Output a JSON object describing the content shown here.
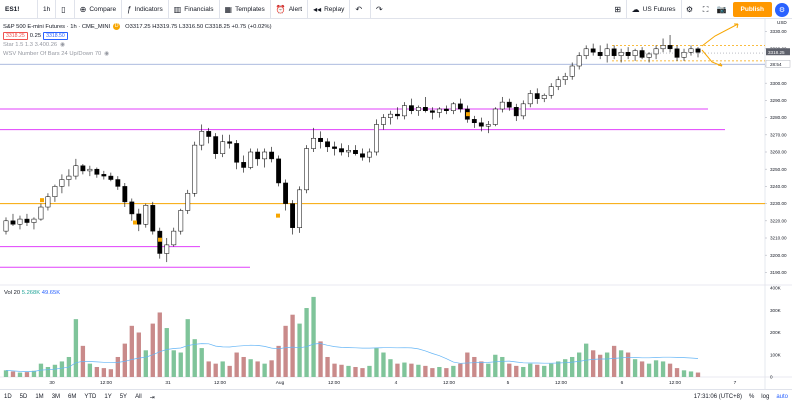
{
  "toolbar": {
    "symbol": "ES1!",
    "interval": "1h",
    "compare": "Compare",
    "indicators": "Indicators",
    "financials": "Financials",
    "templates": "Templates",
    "alert": "Alert",
    "replay": "Replay",
    "watchlist": "US Futures",
    "publish": "Publish"
  },
  "legend": {
    "title": "S&P 500 E-mini Futures · 1h · CME_MINI",
    "ohlc": "O3317.25 H3319.75 L3316.50 C3318.25 +0.75 (+0.02%)",
    "bid": "3318.25",
    "spread": "0.25",
    "ask": "3318.50",
    "study1": "Star 1.5 1.3 3.400.26",
    "study2": "WSV Number Of Bars 24 Up/Down 70"
  },
  "volume": {
    "label": "Vol 20",
    "value": "5.268K",
    "ma": "49.65K"
  },
  "price_axis": {
    "currency": "USD",
    "ticks": [
      "3330.00",
      "3320.00",
      "3310.00",
      "3300.00",
      "3290.00",
      "3280.00",
      "3270.00",
      "3260.00",
      "3250.00",
      "3240.00",
      "3230.00",
      "3220.00",
      "3210.00",
      "3200.00",
      "3190.00"
    ],
    "last_price": "3318.25",
    "countdown": "28:54"
  },
  "volume_axis": {
    "ticks": [
      "400K",
      "300K",
      "200K",
      "100K",
      "0"
    ]
  },
  "time_axis": {
    "labels": [
      "30",
      "12:00",
      "31",
      "12:00",
      "Aug",
      "12:00",
      "4",
      "12:00",
      "5",
      "12:00",
      "6",
      "12:00",
      "7"
    ]
  },
  "bottombar": {
    "ranges": [
      "1D",
      "5D",
      "1M",
      "3M",
      "6M",
      "YTD",
      "1Y",
      "5Y",
      "All"
    ],
    "clock": "17:31:06 (UTC+8)",
    "pct": "%",
    "log": "log",
    "auto": "auto"
  },
  "colors": {
    "up": "#000000",
    "down": "#000000",
    "vol_up": "#7fc49a",
    "vol_down": "#c98a8a",
    "accent": "#ff9800",
    "magenta": "#e040fb",
    "blue_line": "#2962ff"
  },
  "chart_data": {
    "type": "candlestick",
    "y_range": [
      3185,
      3335
    ],
    "vol_range": [
      0,
      400000
    ],
    "candles": [
      [
        3214,
        3222,
        3212,
        3220
      ],
      [
        3220,
        3224,
        3217,
        3218
      ],
      [
        3218,
        3223,
        3215,
        3221
      ],
      [
        3221,
        3224,
        3217,
        3219
      ],
      [
        3219,
        3222,
        3215,
        3221
      ],
      [
        3221,
        3230,
        3220,
        3228
      ],
      [
        3228,
        3236,
        3226,
        3234
      ],
      [
        3234,
        3241,
        3231,
        3240
      ],
      [
        3240,
        3247,
        3236,
        3244
      ],
      [
        3244,
        3250,
        3240,
        3246
      ],
      [
        3246,
        3256,
        3244,
        3252
      ],
      [
        3252,
        3253,
        3247,
        3249
      ],
      [
        3249,
        3252,
        3246,
        3250
      ],
      [
        3250,
        3251,
        3245,
        3247
      ],
      [
        3247,
        3249,
        3244,
        3246
      ],
      [
        3246,
        3248,
        3243,
        3244
      ],
      [
        3244,
        3246,
        3238,
        3240
      ],
      [
        3240,
        3242,
        3228,
        3231
      ],
      [
        3231,
        3233,
        3220,
        3224
      ],
      [
        3224,
        3227,
        3214,
        3218
      ],
      [
        3218,
        3230,
        3216,
        3229
      ],
      [
        3229,
        3231,
        3212,
        3214
      ],
      [
        3214,
        3216,
        3198,
        3201
      ],
      [
        3201,
        3210,
        3196,
        3206
      ],
      [
        3206,
        3216,
        3205,
        3214
      ],
      [
        3214,
        3227,
        3212,
        3226
      ],
      [
        3226,
        3238,
        3224,
        3236
      ],
      [
        3236,
        3266,
        3234,
        3264
      ],
      [
        3264,
        3276,
        3261,
        3272
      ],
      [
        3272,
        3274,
        3265,
        3269
      ],
      [
        3269,
        3271,
        3256,
        3259
      ],
      [
        3259,
        3270,
        3257,
        3266
      ],
      [
        3266,
        3270,
        3262,
        3265
      ],
      [
        3265,
        3267,
        3250,
        3254
      ],
      [
        3254,
        3258,
        3248,
        3251
      ],
      [
        3251,
        3262,
        3250,
        3260
      ],
      [
        3260,
        3262,
        3252,
        3256
      ],
      [
        3256,
        3262,
        3251,
        3260
      ],
      [
        3260,
        3263,
        3254,
        3256
      ],
      [
        3256,
        3258,
        3240,
        3242
      ],
      [
        3242,
        3244,
        3226,
        3230
      ],
      [
        3230,
        3232,
        3212,
        3216
      ],
      [
        3216,
        3240,
        3213,
        3238
      ],
      [
        3238,
        3264,
        3236,
        3262
      ],
      [
        3262,
        3274,
        3260,
        3268
      ],
      [
        3268,
        3272,
        3262,
        3266
      ],
      [
        3266,
        3268,
        3260,
        3263
      ],
      [
        3263,
        3266,
        3258,
        3262
      ],
      [
        3262,
        3265,
        3258,
        3260
      ],
      [
        3260,
        3264,
        3257,
        3261
      ],
      [
        3261,
        3264,
        3258,
        3259
      ],
      [
        3259,
        3262,
        3255,
        3257
      ],
      [
        3257,
        3262,
        3254,
        3260
      ],
      [
        3260,
        3279,
        3258,
        3276
      ],
      [
        3276,
        3282,
        3273,
        3280
      ],
      [
        3280,
        3284,
        3276,
        3282
      ],
      [
        3282,
        3286,
        3279,
        3281
      ],
      [
        3281,
        3289,
        3279,
        3287
      ],
      [
        3287,
        3291,
        3282,
        3284
      ],
      [
        3284,
        3287,
        3281,
        3286
      ],
      [
        3286,
        3292,
        3283,
        3284
      ],
      [
        3284,
        3286,
        3279,
        3283
      ],
      [
        3283,
        3286,
        3280,
        3285
      ],
      [
        3285,
        3287,
        3282,
        3284
      ],
      [
        3284,
        3289,
        3282,
        3288
      ],
      [
        3288,
        3291,
        3283,
        3285
      ],
      [
        3285,
        3287,
        3277,
        3279
      ],
      [
        3279,
        3281,
        3274,
        3277
      ],
      [
        3277,
        3280,
        3272,
        3275
      ],
      [
        3275,
        3278,
        3271,
        3276
      ],
      [
        3276,
        3286,
        3275,
        3285
      ],
      [
        3285,
        3292,
        3283,
        3289
      ],
      [
        3289,
        3291,
        3284,
        3286
      ],
      [
        3286,
        3288,
        3278,
        3281
      ],
      [
        3281,
        3290,
        3279,
        3288
      ],
      [
        3288,
        3296,
        3286,
        3294
      ],
      [
        3294,
        3297,
        3288,
        3291
      ],
      [
        3291,
        3294,
        3289,
        3293
      ],
      [
        3293,
        3300,
        3291,
        3298
      ],
      [
        3298,
        3304,
        3296,
        3302
      ],
      [
        3302,
        3306,
        3299,
        3304
      ],
      [
        3304,
        3312,
        3302,
        3310
      ],
      [
        3310,
        3318,
        3308,
        3316
      ],
      [
        3316,
        3322,
        3314,
        3320
      ],
      [
        3320,
        3323,
        3316,
        3318
      ],
      [
        3318,
        3322,
        3314,
        3316
      ],
      [
        3316,
        3323,
        3312,
        3320
      ],
      [
        3320,
        3322,
        3314,
        3316
      ],
      [
        3316,
        3320,
        3312,
        3318
      ],
      [
        3318,
        3321,
        3314,
        3316
      ],
      [
        3316,
        3320,
        3313,
        3319
      ],
      [
        3319,
        3321,
        3314,
        3315
      ],
      [
        3315,
        3318,
        3312,
        3317
      ],
      [
        3317,
        3322,
        3314,
        3320
      ],
      [
        3320,
        3326,
        3318,
        3322
      ],
      [
        3322,
        3328,
        3318,
        3320
      ],
      [
        3320,
        3322,
        3313,
        3315
      ],
      [
        3315,
        3320,
        3313,
        3318
      ],
      [
        3318,
        3322,
        3316,
        3320
      ],
      [
        3320,
        3321,
        3315,
        3318
      ]
    ],
    "volumes": [
      30,
      25,
      20,
      22,
      28,
      60,
      45,
      55,
      70,
      90,
      260,
      140,
      60,
      45,
      40,
      35,
      90,
      150,
      230,
      200,
      120,
      240,
      290,
      220,
      120,
      110,
      260,
      170,
      130,
      70,
      60,
      70,
      50,
      110,
      90,
      80,
      70,
      60,
      75,
      140,
      230,
      280,
      240,
      310,
      360,
      160,
      90,
      60,
      55,
      50,
      45,
      40,
      50,
      130,
      110,
      80,
      60,
      65,
      60,
      55,
      50,
      40,
      45,
      40,
      50,
      60,
      110,
      90,
      70,
      60,
      100,
      90,
      60,
      50,
      45,
      60,
      55,
      50,
      60,
      70,
      80,
      90,
      110,
      150,
      120,
      100,
      110,
      140,
      120,
      110,
      80,
      70,
      60,
      75,
      70,
      60,
      40,
      30,
      25,
      20
    ]
  }
}
